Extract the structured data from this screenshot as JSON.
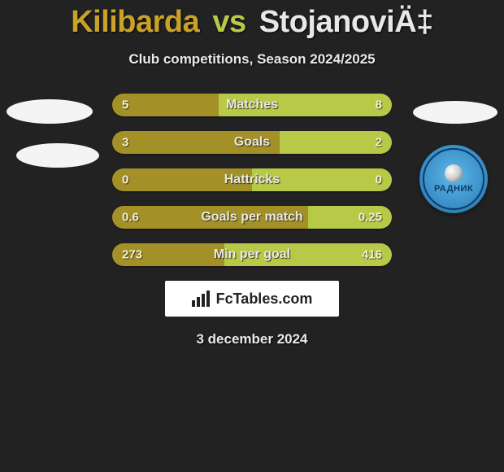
{
  "title": {
    "player_a": "Kilibarda",
    "vs": "vs",
    "player_b": "StojanoviÄ‡"
  },
  "subtitle": "Club competitions, Season 2024/2025",
  "colors": {
    "bar_a": "#a39128",
    "bar_b": "#b8c948",
    "bg": "#222222"
  },
  "stats": [
    {
      "label": "Matches",
      "a": "5",
      "b": "8",
      "a_pct": 38,
      "b_pct": 62
    },
    {
      "label": "Goals",
      "a": "3",
      "b": "2",
      "a_pct": 60,
      "b_pct": 40
    },
    {
      "label": "Hattricks",
      "a": "0",
      "b": "0",
      "a_pct": 50,
      "b_pct": 50
    },
    {
      "label": "Goals per match",
      "a": "0.6",
      "b": "0.25",
      "a_pct": 70,
      "b_pct": 30
    },
    {
      "label": "Min per goal",
      "a": "273",
      "b": "416",
      "a_pct": 40,
      "b_pct": 60
    }
  ],
  "footer_logo_text": "FcTables.com",
  "date": "3 december 2024",
  "team_b_logo_text": "РАДНИК"
}
